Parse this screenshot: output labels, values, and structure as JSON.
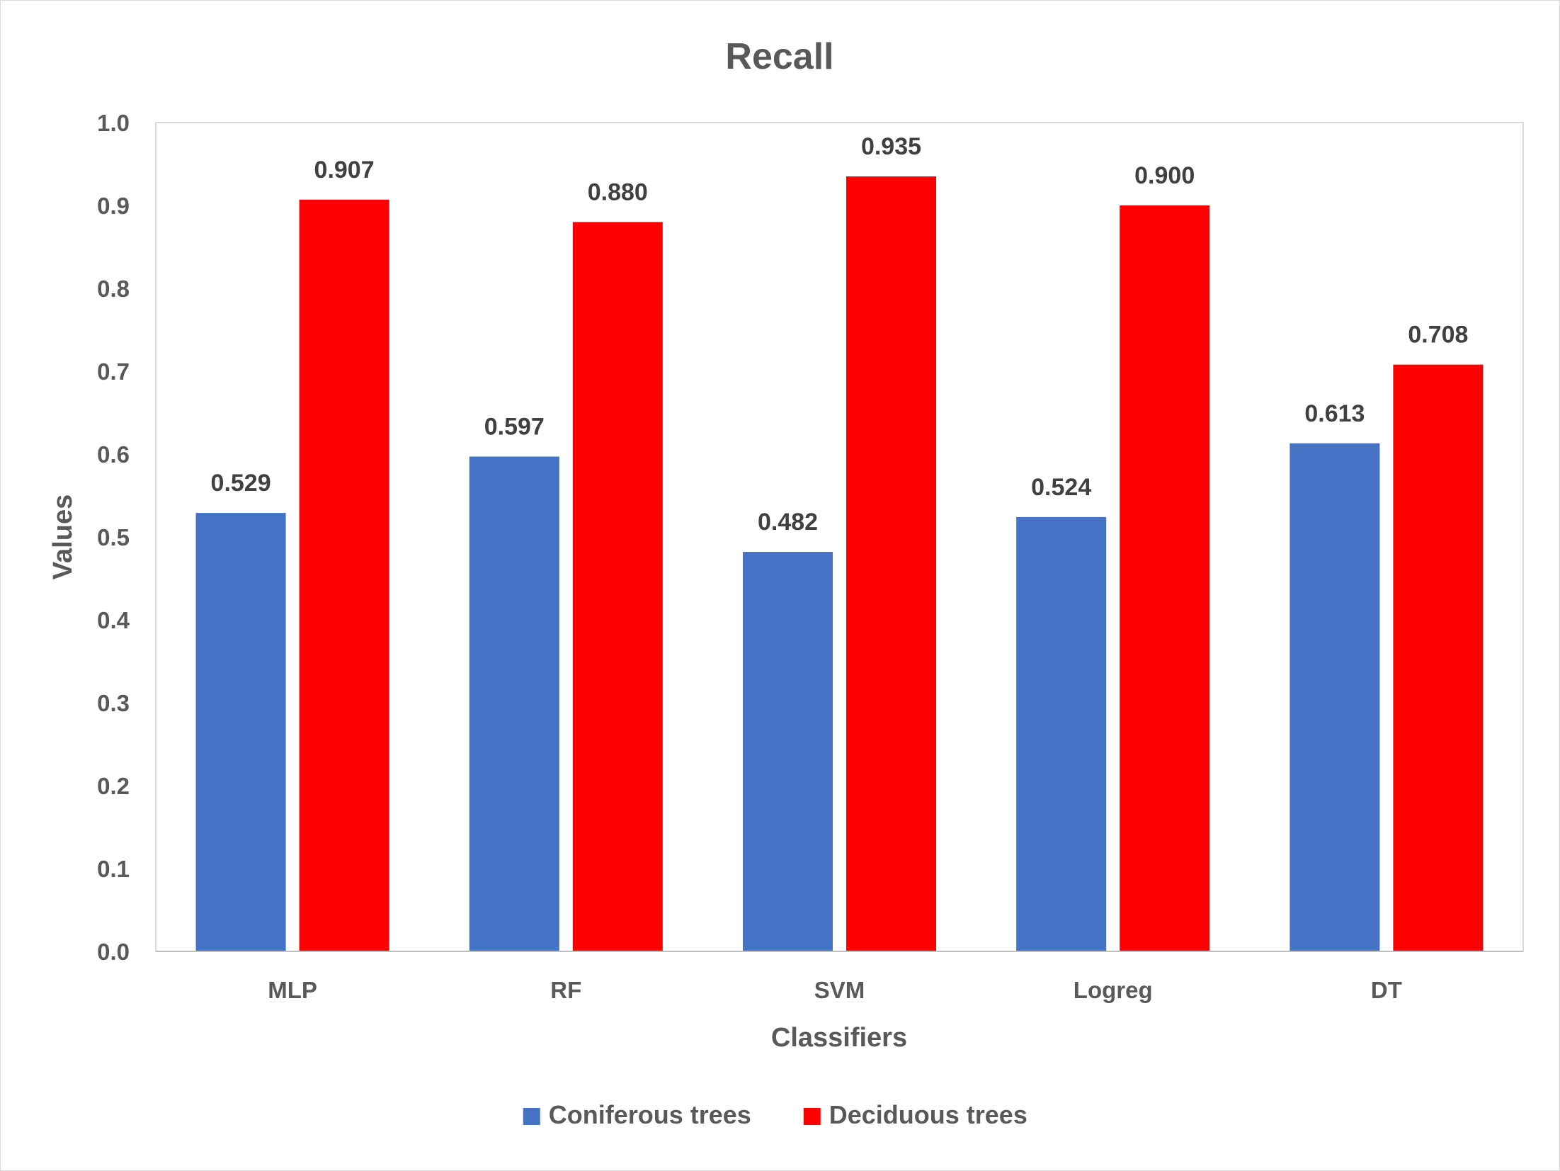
{
  "chart_data": {
    "type": "bar",
    "title": "Recall",
    "xlabel": "Classifiers",
    "ylabel": "Values",
    "categories": [
      "MLP",
      "RF",
      "SVM",
      "Logreg",
      "DT"
    ],
    "series": [
      {
        "name": "Coniferous trees",
        "color": "#4472C4",
        "values": [
          0.529,
          0.597,
          0.482,
          0.524,
          0.613
        ],
        "labels": [
          "0.529",
          "0.597",
          "0.482",
          "0.524",
          "0.613"
        ]
      },
      {
        "name": "Deciduous trees",
        "color": "#FF0000",
        "values": [
          0.907,
          0.88,
          0.935,
          0.9,
          0.708
        ],
        "labels": [
          "0.907",
          "0.880",
          "0.935",
          "0.900",
          "0.708"
        ]
      }
    ],
    "ylim": [
      0,
      1.0
    ],
    "yticks": [
      0.0,
      0.1,
      0.2,
      0.3,
      0.4,
      0.5,
      0.6,
      0.7,
      0.8,
      0.9,
      1.0
    ],
    "ytick_labels": [
      "0.0",
      "0.1",
      "0.2",
      "0.3",
      "0.4",
      "0.5",
      "0.6",
      "0.7",
      "0.8",
      "0.9",
      "1.0"
    ],
    "grid": false,
    "legend_position": "bottom"
  }
}
